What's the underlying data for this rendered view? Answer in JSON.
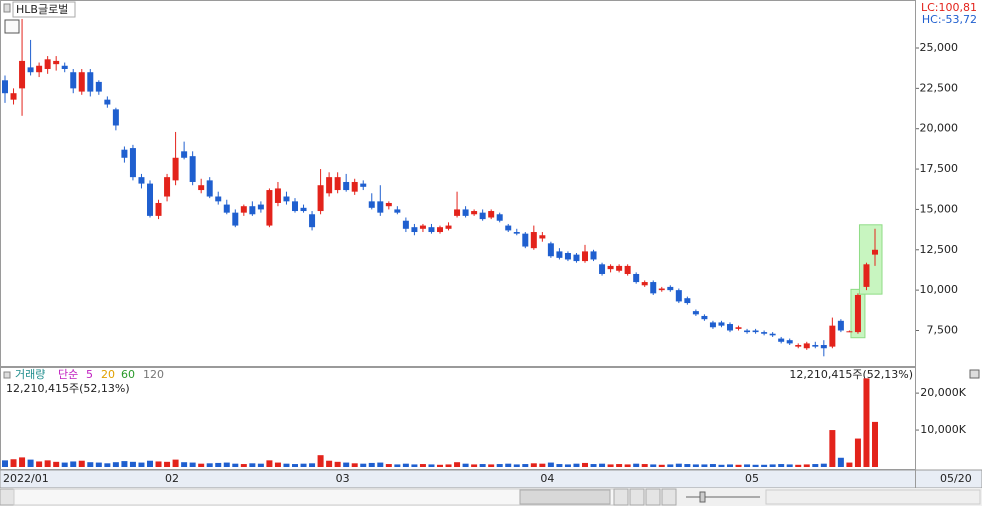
{
  "header": {
    "stock_name": "HLB글로벌",
    "lc": "LC:100,81",
    "hc": "HC:-53,72"
  },
  "volume_legend": {
    "title": "거래량",
    "ma_label": "단순",
    "ma_periods": [
      "5",
      "20",
      "60",
      "120"
    ],
    "last_volume_left": "12,210,415주(52,13%)",
    "last_volume_right": "12,210,415주(52,13%)"
  },
  "chart_data": [
    {
      "type": "candlestick",
      "categories": [
        "2022/01",
        null,
        null,
        null,
        null,
        null,
        null,
        null,
        null,
        null,
        null,
        null,
        null,
        null,
        null,
        null,
        null,
        null,
        null,
        "02",
        null,
        null,
        null,
        null,
        null,
        null,
        null,
        null,
        null,
        null,
        null,
        null,
        null,
        null,
        null,
        null,
        null,
        null,
        null,
        "03",
        null,
        null,
        null,
        null,
        null,
        null,
        null,
        null,
        null,
        null,
        null,
        null,
        null,
        null,
        null,
        null,
        null,
        null,
        null,
        null,
        null,
        null,
        null,
        "04",
        null,
        null,
        null,
        null,
        null,
        null,
        null,
        null,
        null,
        null,
        null,
        null,
        null,
        null,
        null,
        null,
        null,
        null,
        null,
        null,
        null,
        null,
        null,
        "05",
        null,
        null,
        null,
        null,
        null,
        null,
        null,
        null,
        null,
        null,
        null,
        null,
        null,
        null,
        null
      ],
      "open": [
        23000,
        21800,
        22500,
        23800,
        23500,
        23700,
        24000,
        23900,
        23500,
        22300,
        23500,
        22900,
        21800,
        21200,
        18700,
        18800,
        17000,
        16600,
        14600,
        15800,
        16800,
        18600,
        18300,
        16200,
        16800,
        15800,
        15300,
        14800,
        14800,
        15200,
        15300,
        14000,
        15400,
        15800,
        15500,
        15100,
        14700,
        14900,
        16000,
        16200,
        16700,
        16100,
        16600,
        15500,
        15500,
        15200,
        15000,
        14300,
        13900,
        13800,
        13900,
        13600,
        13800,
        14600,
        15000,
        14700,
        14800,
        14500,
        14700,
        14000,
        13600,
        13500,
        12600,
        13200,
        12900,
        12400,
        12300,
        12200,
        11800,
        12400,
        11600,
        11300,
        11200,
        11000,
        11000,
        10300,
        10500,
        10000,
        10200,
        10000,
        9500,
        8700,
        8400,
        8000,
        8000,
        7900,
        7600,
        7500,
        7500,
        7400,
        7300,
        7000,
        6900,
        6500,
        6400,
        6600,
        6600,
        6500,
        8100,
        7400,
        7400,
        10200,
        12200
      ],
      "high": [
        23300,
        22500,
        26800,
        25500,
        24100,
        24500,
        24500,
        24100,
        23700,
        23700,
        23700,
        23000,
        22000,
        21300,
        18900,
        19000,
        17200,
        16800,
        15600,
        17200,
        19800,
        19200,
        18600,
        16900,
        17000,
        16100,
        15600,
        15000,
        15300,
        15500,
        15500,
        16300,
        16700,
        16100,
        15700,
        15300,
        14900,
        17500,
        17300,
        17300,
        17200,
        16900,
        16800,
        16000,
        16500,
        15500,
        15200,
        14500,
        14100,
        14100,
        14100,
        14000,
        14200,
        16100,
        15200,
        15000,
        15000,
        15000,
        14800,
        14100,
        13800,
        13600,
        14000,
        13600,
        13000,
        12600,
        12400,
        12300,
        12800,
        12500,
        11700,
        11600,
        11600,
        11600,
        11100,
        10600,
        10600,
        10200,
        10300,
        10100,
        9600,
        8800,
        8500,
        8100,
        8100,
        8000,
        7800,
        7600,
        7600,
        7500,
        7400,
        7100,
        7000,
        6700,
        6800,
        6800,
        6900,
        8300,
        8200,
        7500,
        9800,
        11700,
        13800
      ],
      "low": [
        21600,
        21500,
        20800,
        23300,
        23200,
        23400,
        23600,
        23500,
        22200,
        22100,
        22000,
        22100,
        21300,
        19900,
        17900,
        16800,
        16300,
        14500,
        14400,
        15500,
        16500,
        18100,
        16500,
        16000,
        15700,
        15300,
        14700,
        13900,
        14600,
        14600,
        14800,
        13900,
        15200,
        15300,
        14800,
        14800,
        13700,
        14700,
        15800,
        16000,
        16100,
        15900,
        16200,
        15000,
        14600,
        15000,
        14700,
        13600,
        13400,
        13600,
        13500,
        13500,
        13700,
        14500,
        14500,
        14600,
        14300,
        14400,
        14200,
        13600,
        13400,
        12600,
        12500,
        13000,
        12000,
        11900,
        11800,
        11700,
        11700,
        11800,
        10900,
        11100,
        11100,
        10900,
        10400,
        10200,
        9700,
        9900,
        9900,
        9200,
        9100,
        8400,
        8100,
        7600,
        7700,
        7400,
        7500,
        7300,
        7300,
        7200,
        7100,
        6700,
        6600,
        6400,
        6300,
        6400,
        5900,
        6400,
        7400,
        7400,
        7300,
        10000,
        11500
      ],
      "close": [
        22200,
        22200,
        24200,
        23500,
        23900,
        24300,
        24200,
        23700,
        22500,
        23500,
        22300,
        22300,
        21500,
        20200,
        18200,
        17000,
        16600,
        14600,
        15400,
        17000,
        18200,
        18200,
        16700,
        16500,
        15800,
        15500,
        14800,
        14000,
        15200,
        14700,
        15000,
        16200,
        16300,
        15500,
        14900,
        14900,
        13900,
        16500,
        17000,
        17000,
        16200,
        16700,
        16400,
        15100,
        14800,
        15400,
        14800,
        13800,
        13600,
        14000,
        13600,
        13900,
        14000,
        15000,
        14600,
        14900,
        14400,
        14900,
        14300,
        13700,
        13500,
        12700,
        13600,
        13400,
        12100,
        12000,
        11900,
        11800,
        12400,
        11900,
        11000,
        11500,
        11500,
        11500,
        10500,
        10500,
        9800,
        10100,
        10000,
        9300,
        9200,
        8500,
        8200,
        7700,
        7800,
        7500,
        7700,
        7400,
        7400,
        7300,
        7200,
        6800,
        6700,
        6600,
        6700,
        6500,
        6400,
        7800,
        7500,
        7450,
        9700,
        11600,
        12500
      ],
      "up_color": "#e3231b",
      "down_color": "#1f5fcf",
      "ylim": [
        5300,
        27850
      ],
      "yticks": [
        {
          "value": 7500,
          "label": "7,500"
        },
        {
          "value": 10000,
          "label": "10,000"
        },
        {
          "value": 12500,
          "label": "12,500"
        },
        {
          "value": 15000,
          "label": "15,000"
        },
        {
          "value": 17500,
          "label": "17,500"
        },
        {
          "value": 20000,
          "label": "20,000"
        },
        {
          "value": 22500,
          "label": "22,500"
        },
        {
          "value": 25000,
          "label": "25,000"
        }
      ],
      "last_date_label": "05/20"
    },
    {
      "type": "bar",
      "values": [
        1800,
        2100,
        2600,
        2000,
        1500,
        1800,
        1400,
        1200,
        1500,
        1700,
        1300,
        1200,
        1000,
        1300,
        1600,
        1400,
        1200,
        1700,
        1500,
        1400,
        2000,
        1300,
        1200,
        900,
        1000,
        1100,
        1200,
        900,
        800,
        1000,
        900,
        1800,
        1200,
        900,
        800,
        900,
        1000,
        3200,
        1700,
        1400,
        1200,
        1000,
        900,
        1100,
        1200,
        800,
        700,
        900,
        700,
        800,
        700,
        600,
        700,
        1300,
        900,
        700,
        800,
        700,
        800,
        900,
        700,
        800,
        1000,
        900,
        1200,
        800,
        700,
        900,
        1100,
        800,
        900,
        700,
        800,
        700,
        900,
        800,
        700,
        600,
        700,
        900,
        800,
        700,
        700,
        800,
        600,
        700,
        600,
        700,
        600,
        600,
        700,
        800,
        700,
        600,
        700,
        800,
        900,
        10000,
        2500,
        1200,
        7700,
        24000,
        12210
      ],
      "ylim": [
        0,
        26800
      ],
      "yticks": [
        {
          "value": 10000,
          "label": "10,000K"
        },
        {
          "value": 20000,
          "label": "20,000K"
        }
      ]
    }
  ]
}
